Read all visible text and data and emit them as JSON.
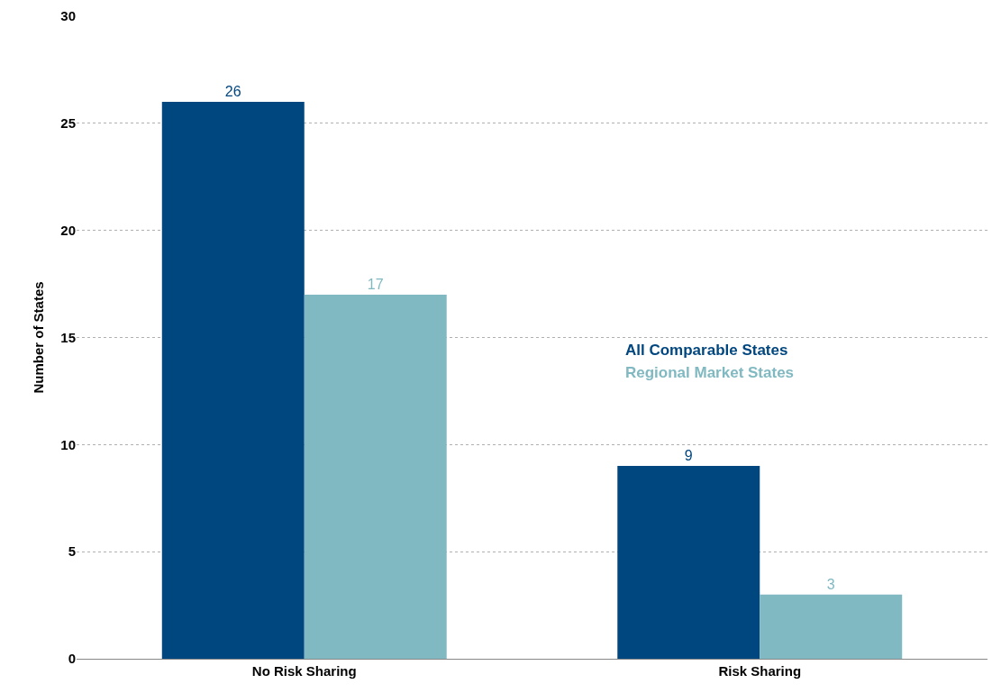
{
  "chart_data": {
    "type": "bar",
    "ylabel": "Number of States",
    "categories": [
      "No Risk Sharing",
      "Risk Sharing"
    ],
    "series": [
      {
        "name": "All Comparable States",
        "color": "#00467f",
        "values": [
          26,
          9
        ]
      },
      {
        "name": "Regional Market States",
        "color": "#80b9c1",
        "values": [
          17,
          3
        ]
      }
    ],
    "ylim": [
      0,
      30
    ],
    "yticks": [
      0,
      5,
      10,
      15,
      20,
      25,
      30
    ],
    "grid": "y",
    "legend": "right",
    "data_labels": true
  }
}
